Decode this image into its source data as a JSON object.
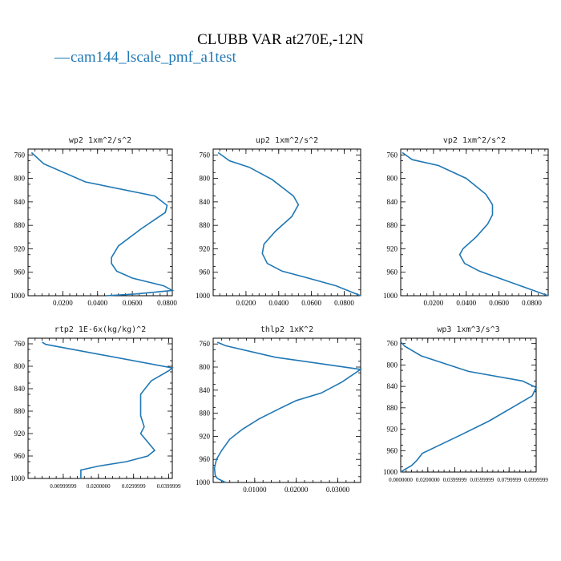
{
  "figure_title": "CLUBB VAR at270E,-12N",
  "legend": {
    "entries": [
      {
        "marker": "—",
        "label": "cam144_lscale_pmf_a1test",
        "color": "#1f77b4"
      }
    ]
  },
  "chart_data": [
    {
      "type": "line",
      "title": "wp2  1xm^2/s^2",
      "ylim": [
        1000,
        750
      ],
      "y_ticks": [
        760,
        800,
        840,
        880,
        920,
        960,
        1000
      ],
      "y_tick_labels": [
        "760",
        "800",
        "840",
        "880",
        "920",
        "960",
        "1000"
      ],
      "xlim": [
        0.0,
        0.083
      ],
      "x_ticks": [
        0.02,
        0.04,
        0.06,
        0.08
      ],
      "x_tick_labels": [
        "0.0200",
        "0.0400",
        "0.0600",
        "0.0800"
      ],
      "series": [
        {
          "color": "#1f77b4",
          "x": [
            0.002,
            0.009,
            0.033,
            0.073,
            0.08,
            0.079,
            0.065,
            0.052,
            0.048,
            0.048,
            0.051,
            0.06,
            0.078,
            0.083,
            0.062,
            0.045
          ],
          "y": [
            756,
            775,
            806,
            830,
            846,
            858,
            886,
            915,
            935,
            945,
            958,
            970,
            983,
            991,
            997,
            1000
          ]
        }
      ]
    },
    {
      "type": "line",
      "title": "up2  1xm^2/s^2",
      "ylim": [
        1000,
        750
      ],
      "y_ticks": [
        760,
        800,
        840,
        880,
        920,
        960,
        1000
      ],
      "y_tick_labels": [
        "760",
        "800",
        "840",
        "880",
        "920",
        "960",
        "1000"
      ],
      "xlim": [
        0.0,
        0.09
      ],
      "x_ticks": [
        0.02,
        0.04,
        0.06,
        0.08
      ],
      "x_tick_labels": [
        "0.0200",
        "0.0400",
        "0.0600",
        "0.0800"
      ],
      "series": [
        {
          "color": "#1f77b4",
          "x": [
            0.003,
            0.01,
            0.022,
            0.036,
            0.049,
            0.052,
            0.048,
            0.038,
            0.031,
            0.03,
            0.033,
            0.042,
            0.058,
            0.075,
            0.09
          ],
          "y": [
            756,
            770,
            781,
            802,
            830,
            845,
            865,
            890,
            912,
            928,
            945,
            958,
            970,
            983,
            1000
          ]
        }
      ]
    },
    {
      "type": "line",
      "title": "vp2  1xm^2/s^2",
      "ylim": [
        1000,
        750
      ],
      "y_ticks": [
        760,
        800,
        840,
        880,
        920,
        960,
        1000
      ],
      "y_tick_labels": [
        "760",
        "800",
        "840",
        "880",
        "920",
        "960",
        "1000"
      ],
      "xlim": [
        0.0,
        0.09
      ],
      "x_ticks": [
        0.02,
        0.04,
        0.06,
        0.08
      ],
      "x_tick_labels": [
        "0.0200",
        "0.0400",
        "0.0600",
        "0.0800"
      ],
      "series": [
        {
          "color": "#1f77b4",
          "x": [
            0.001,
            0.007,
            0.023,
            0.04,
            0.052,
            0.056,
            0.056,
            0.053,
            0.046,
            0.038,
            0.036,
            0.039,
            0.048,
            0.062,
            0.075,
            0.09
          ],
          "y": [
            756,
            768,
            778,
            800,
            827,
            845,
            862,
            878,
            900,
            920,
            930,
            945,
            958,
            972,
            985,
            1000
          ]
        }
      ]
    },
    {
      "type": "line",
      "title": "rtp2  1E-6x(kg/kg)^2",
      "ylim": [
        1000,
        750
      ],
      "y_ticks": [
        760,
        800,
        840,
        880,
        920,
        960,
        1000
      ],
      "y_tick_labels": [
        "760",
        "800",
        "840",
        "880",
        "920",
        "960",
        "1000"
      ],
      "xlim": [
        0.0,
        0.041
      ],
      "x_ticks": [
        0.01,
        0.02,
        0.03,
        0.04
      ],
      "x_tick_labels": [
        "0.00999999",
        "0.0200000",
        "0.0299999",
        "0.0399999"
      ],
      "series": [
        {
          "color": "#1f77b4",
          "x": [
            0.004,
            0.005,
            0.041,
            0.04,
            0.035,
            0.032,
            0.032,
            0.032,
            0.033,
            0.032,
            0.034,
            0.036,
            0.034,
            0.028,
            0.02,
            0.015,
            0.015,
            0.015
          ],
          "y": [
            757,
            761,
            803,
            808,
            826,
            850,
            870,
            888,
            908,
            920,
            935,
            950,
            960,
            970,
            978,
            985,
            995,
            1000
          ]
        }
      ]
    },
    {
      "type": "line",
      "title": "thlp2  1xK^2",
      "ylim": [
        1000,
        750
      ],
      "y_ticks": [
        760,
        800,
        840,
        880,
        920,
        960,
        1000
      ],
      "y_tick_labels": [
        "760",
        "800",
        "840",
        "880",
        "920",
        "960",
        "1000"
      ],
      "xlim": [
        0.0,
        0.0355
      ],
      "x_ticks": [
        0.01,
        0.02,
        0.03
      ],
      "x_tick_labels": [
        "0.01000",
        "0.02000",
        "0.03000"
      ],
      "series": [
        {
          "color": "#1f77b4",
          "x": [
            0.001,
            0.003,
            0.015,
            0.0355,
            0.031,
            0.026,
            0.02,
            0.016,
            0.011,
            0.007,
            0.004,
            0.002,
            0.0008,
            0.0003,
            0.0005,
            0.001,
            0.003
          ],
          "y": [
            757,
            763,
            783,
            804,
            826,
            845,
            858,
            872,
            890,
            908,
            925,
            945,
            960,
            975,
            988,
            993,
            1000
          ]
        }
      ]
    },
    {
      "type": "line",
      "title": "wp3  1xm^3/s^3",
      "ylim": [
        1000,
        750
      ],
      "y_ticks": [
        760,
        800,
        840,
        880,
        920,
        960,
        1000
      ],
      "y_tick_labels": [
        "760",
        "800",
        "840",
        "880",
        "920",
        "960",
        "1000"
      ],
      "xlim": [
        0.0,
        0.1
      ],
      "x_ticks": [
        0.0,
        0.02,
        0.04,
        0.06,
        0.08,
        0.1
      ],
      "x_tick_labels": [
        "0.0000000",
        "0.0200000",
        "0.0399999",
        "0.0599999",
        "0.0799999",
        "0.0999999"
      ],
      "series": [
        {
          "color": "#1f77b4",
          "x": [
            0.0,
            0.003,
            0.015,
            0.05,
            0.09,
            0.1,
            0.097,
            0.082,
            0.065,
            0.045,
            0.03,
            0.016,
            0.012,
            0.008,
            0.003,
            0.0
          ],
          "y": [
            757,
            765,
            783,
            812,
            830,
            842,
            858,
            880,
            905,
            930,
            948,
            965,
            978,
            988,
            995,
            1000
          ]
        }
      ]
    }
  ]
}
